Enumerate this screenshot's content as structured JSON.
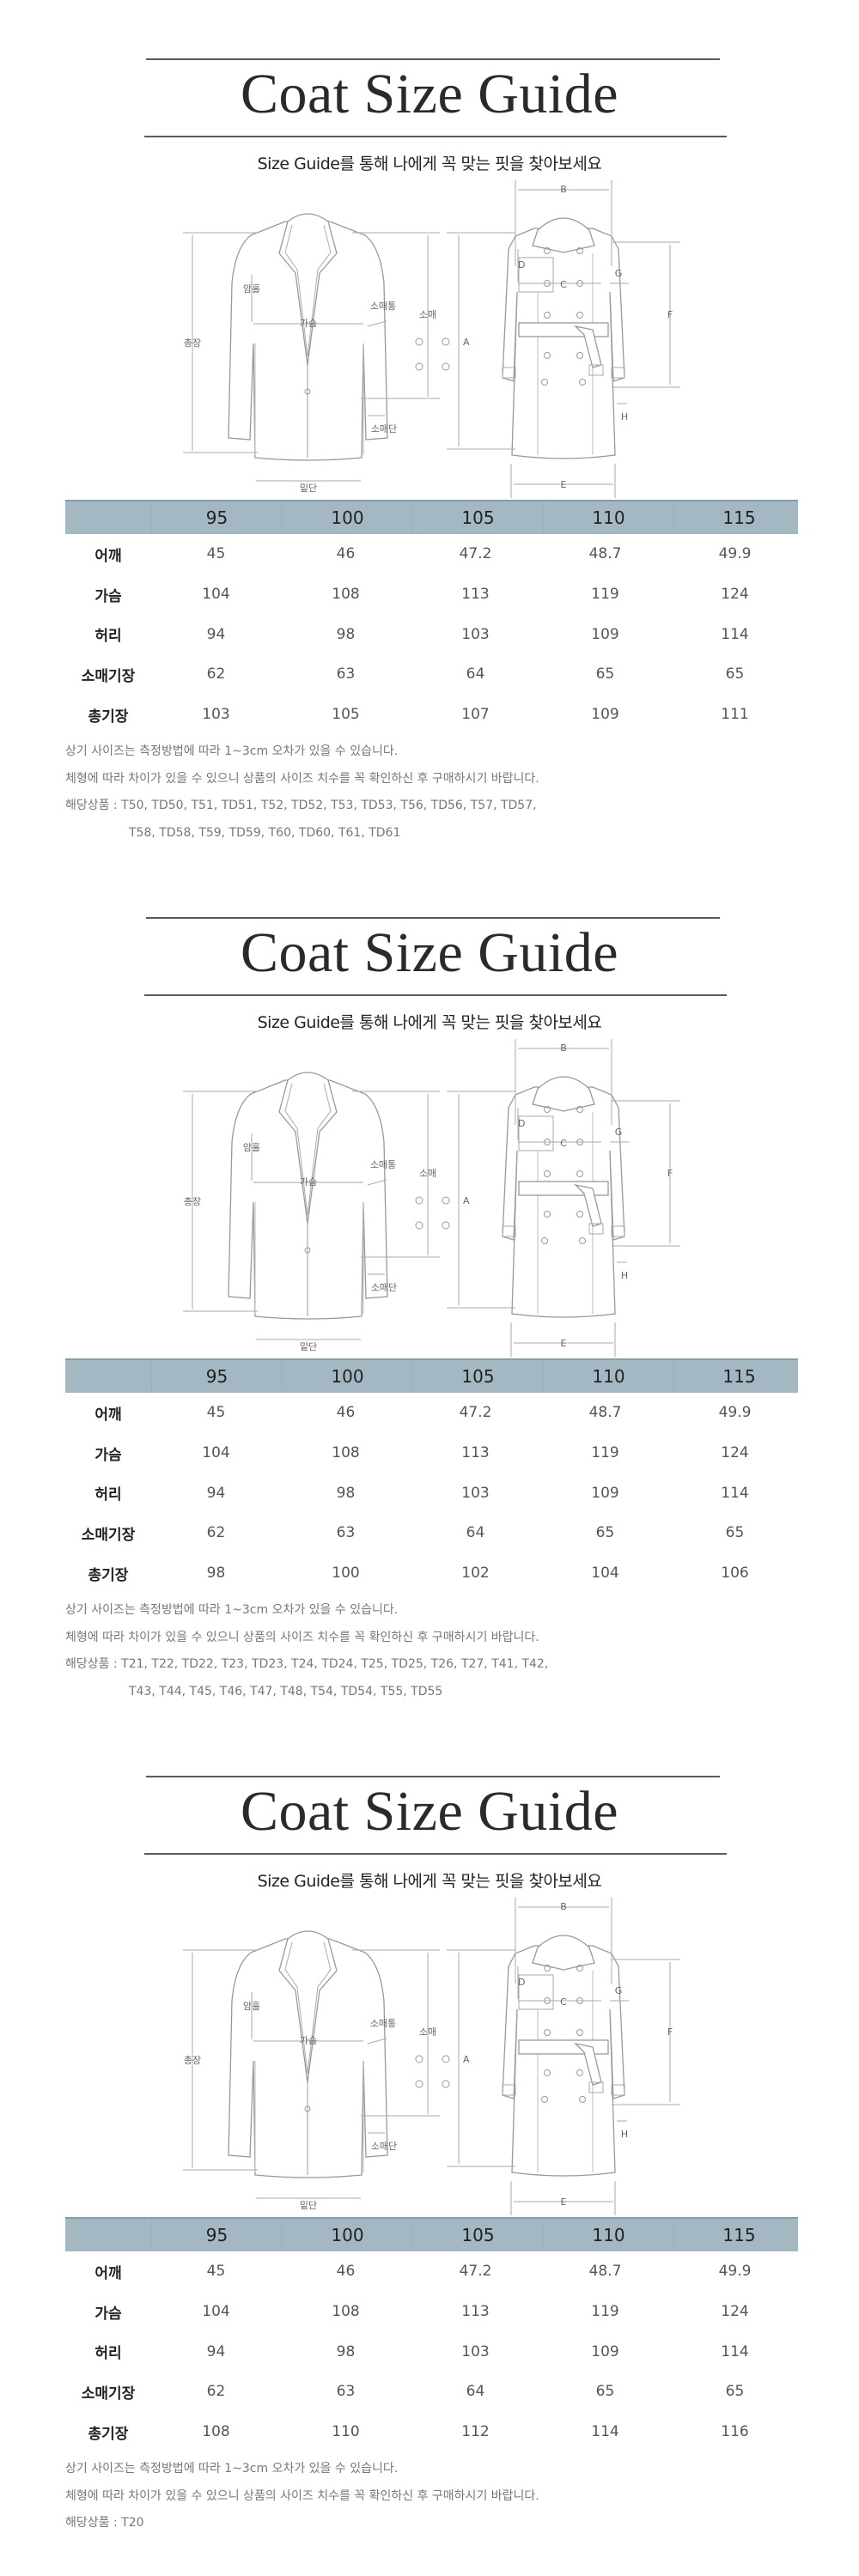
{
  "colors": {
    "header_bg": "#a3b8c3",
    "rule": "#5a5a5a"
  },
  "diagram_labels": {
    "total_length": "총장",
    "armhole": "암홀",
    "chest": "가슴",
    "sleeve_width": "소매통",
    "sleeve": "소매",
    "cuff": "소매단",
    "hem": "밑단",
    "a": "A",
    "b": "B",
    "c": "C",
    "d": "D",
    "e": "E",
    "f": "F",
    "g": "G",
    "h": "H"
  },
  "sections": [
    {
      "title": "Coat Size Guide",
      "subtitle": "Size Guide를 통해 나에게 꼭 맞는 핏을 찾아보세요",
      "table": {
        "headers": [
          "95",
          "100",
          "105",
          "110",
          "115"
        ],
        "rows": [
          {
            "label": "어깨",
            "values": [
              "45",
              "46",
              "47.2",
              "48.7",
              "49.9"
            ]
          },
          {
            "label": "가슴",
            "values": [
              "104",
              "108",
              "113",
              "119",
              "124"
            ]
          },
          {
            "label": "허리",
            "values": [
              "94",
              "98",
              "103",
              "109",
              "114"
            ]
          },
          {
            "label": "소매기장",
            "values": [
              "62",
              "63",
              "64",
              "65",
              "65"
            ]
          },
          {
            "label": "총기장",
            "values": [
              "103",
              "105",
              "107",
              "109",
              "111"
            ]
          }
        ]
      },
      "notes": [
        "상기 사이즈는 측정방법에 따라 1~3cm 오차가 있을 수 있습니다.",
        "체형에 따라 차이가 있을 수 있으니 상품의 사이즈 치수를 꼭 확인하신 후 구매하시기 바랍니다.",
        "해당상품 : T50, TD50, T51, TD51, T52, TD52, T53, TD53, T56, TD56, T57, TD57,",
        "T58, TD58, T59, TD59, T60, TD60, T61, TD61"
      ]
    },
    {
      "title": "Coat Size Guide",
      "subtitle": "Size Guide를 통해 나에게 꼭 맞는 핏을 찾아보세요",
      "table": {
        "headers": [
          "95",
          "100",
          "105",
          "110",
          "115"
        ],
        "rows": [
          {
            "label": "어깨",
            "values": [
              "45",
              "46",
              "47.2",
              "48.7",
              "49.9"
            ]
          },
          {
            "label": "가슴",
            "values": [
              "104",
              "108",
              "113",
              "119",
              "124"
            ]
          },
          {
            "label": "허리",
            "values": [
              "94",
              "98",
              "103",
              "109",
              "114"
            ]
          },
          {
            "label": "소매기장",
            "values": [
              "62",
              "63",
              "64",
              "65",
              "65"
            ]
          },
          {
            "label": "총기장",
            "values": [
              "98",
              "100",
              "102",
              "104",
              "106"
            ]
          }
        ]
      },
      "notes": [
        "상기 사이즈는 측정방법에 따라 1~3cm 오차가 있을 수 있습니다.",
        "체형에 따라 차이가 있을 수 있으니 상품의 사이즈 치수를 꼭 확인하신 후 구매하시기 바랍니다.",
        "해당상품 : T21, T22, TD22, T23, TD23, T24, TD24, T25, TD25, T26, T27, T41, T42,",
        "T43, T44, T45, T46, T47, T48, T54, TD54, T55, TD55"
      ]
    },
    {
      "title": "Coat Size Guide",
      "subtitle": "Size Guide를 통해 나에게 꼭 맞는 핏을 찾아보세요",
      "table": {
        "headers": [
          "95",
          "100",
          "105",
          "110",
          "115"
        ],
        "rows": [
          {
            "label": "어깨",
            "values": [
              "45",
              "46",
              "47.2",
              "48.7",
              "49.9"
            ]
          },
          {
            "label": "가슴",
            "values": [
              "104",
              "108",
              "113",
              "119",
              "124"
            ]
          },
          {
            "label": "허리",
            "values": [
              "94",
              "98",
              "103",
              "109",
              "114"
            ]
          },
          {
            "label": "소매기장",
            "values": [
              "62",
              "63",
              "64",
              "65",
              "65"
            ]
          },
          {
            "label": "총기장",
            "values": [
              "108",
              "110",
              "112",
              "114",
              "116"
            ]
          }
        ]
      },
      "notes": [
        "상기 사이즈는 측정방법에 따라 1~3cm 오차가 있을 수 있습니다.",
        "체형에 따라 차이가 있을 수 있으니 상품의 사이즈 치수를 꼭 확인하신 후 구매하시기 바랍니다.",
        "해당상품 : T20"
      ]
    }
  ]
}
